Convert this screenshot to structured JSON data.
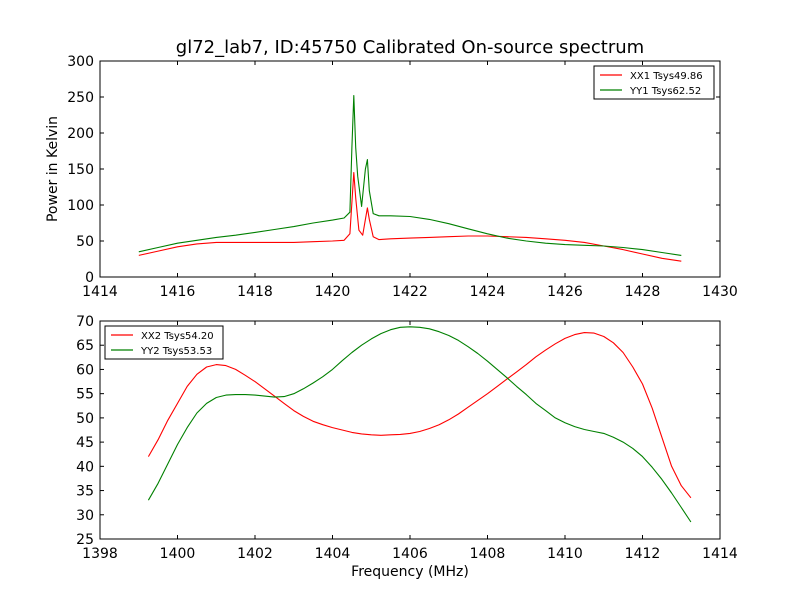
{
  "chart_data": [
    {
      "type": "line",
      "title": "gl72_lab7, ID:45750 Calibrated On-source spectrum",
      "xlabel": "",
      "ylabel": "Power in Kelvin",
      "xlim": [
        1414,
        1430
      ],
      "ylim": [
        0,
        300
      ],
      "xticks": [
        1414,
        1416,
        1418,
        1420,
        1422,
        1424,
        1426,
        1428,
        1430
      ],
      "yticks": [
        0,
        50,
        100,
        150,
        200,
        250,
        300
      ],
      "grid": false,
      "legend": "top-right",
      "series": [
        {
          "name": "XX1 Tsys49.86",
          "color": "#ff0000",
          "x": [
            1415.0,
            1415.5,
            1416.0,
            1416.5,
            1417.0,
            1417.5,
            1418.0,
            1418.5,
            1419.0,
            1419.5,
            1420.0,
            1420.3,
            1420.45,
            1420.55,
            1420.6,
            1420.68,
            1420.78,
            1420.85,
            1420.9,
            1420.95,
            1421.05,
            1421.2,
            1421.5,
            1422.0,
            1422.5,
            1423.0,
            1423.5,
            1424.0,
            1424.5,
            1425.0,
            1425.5,
            1426.0,
            1426.5,
            1427.0,
            1427.5,
            1428.0,
            1428.5,
            1429.0
          ],
          "y": [
            30,
            36,
            42,
            46,
            48,
            48,
            48,
            48,
            48,
            49,
            50,
            51,
            60,
            145,
            110,
            65,
            58,
            80,
            96,
            80,
            56,
            52,
            53,
            54,
            55,
            56,
            57,
            57,
            56,
            55,
            53,
            51,
            48,
            43,
            38,
            32,
            26,
            22
          ]
        },
        {
          "name": "YY1 Tsys62.52",
          "color": "#008000",
          "x": [
            1415.0,
            1415.5,
            1416.0,
            1416.5,
            1417.0,
            1417.5,
            1418.0,
            1418.5,
            1419.0,
            1419.5,
            1420.0,
            1420.3,
            1420.45,
            1420.5,
            1420.55,
            1420.6,
            1420.65,
            1420.75,
            1420.85,
            1420.9,
            1420.95,
            1421.05,
            1421.2,
            1421.5,
            1422.0,
            1422.5,
            1423.0,
            1423.5,
            1424.0,
            1424.5,
            1425.0,
            1425.5,
            1426.0,
            1426.5,
            1427.0,
            1427.5,
            1428.0,
            1428.5,
            1429.0
          ],
          "y": [
            35,
            41,
            47,
            51,
            55,
            58,
            62,
            66,
            70,
            75,
            79,
            82,
            90,
            180,
            252,
            180,
            140,
            98,
            150,
            163,
            120,
            88,
            85,
            85,
            84,
            80,
            74,
            67,
            60,
            54,
            50,
            47,
            45,
            44,
            43,
            41,
            38,
            34,
            30
          ]
        }
      ]
    },
    {
      "type": "line",
      "title": "",
      "xlabel": "Frequency (MHz)",
      "ylabel": "",
      "xlim": [
        1398,
        1414
      ],
      "ylim": [
        25,
        70
      ],
      "xticks": [
        1398,
        1400,
        1402,
        1404,
        1406,
        1408,
        1410,
        1412,
        1414
      ],
      "yticks": [
        25,
        30,
        35,
        40,
        45,
        50,
        55,
        60,
        65,
        70
      ],
      "grid": false,
      "legend": "top-left",
      "series": [
        {
          "name": "XX2 Tsys54.20",
          "color": "#ff0000",
          "x": [
            1399.25,
            1399.5,
            1399.75,
            1400.0,
            1400.25,
            1400.5,
            1400.75,
            1401.0,
            1401.25,
            1401.5,
            1401.75,
            1402.0,
            1402.25,
            1402.5,
            1402.75,
            1403.0,
            1403.25,
            1403.5,
            1403.75,
            1404.0,
            1404.25,
            1404.5,
            1404.75,
            1405.0,
            1405.25,
            1405.5,
            1405.75,
            1406.0,
            1406.25,
            1406.5,
            1406.75,
            1407.0,
            1407.25,
            1407.5,
            1407.75,
            1408.0,
            1408.25,
            1408.5,
            1408.75,
            1409.0,
            1409.25,
            1409.5,
            1409.75,
            1410.0,
            1410.25,
            1410.5,
            1410.75,
            1411.0,
            1411.25,
            1411.5,
            1411.75,
            1412.0,
            1412.25,
            1412.5,
            1412.75,
            1413.0,
            1413.25
          ],
          "y": [
            42,
            45.5,
            49.5,
            53,
            56.5,
            59,
            60.5,
            61,
            60.8,
            60,
            58.8,
            57.5,
            56,
            54.5,
            53,
            51.5,
            50.3,
            49.3,
            48.6,
            48,
            47.5,
            47,
            46.7,
            46.5,
            46.4,
            46.5,
            46.6,
            46.8,
            47.2,
            47.8,
            48.6,
            49.6,
            50.8,
            52.2,
            53.6,
            55,
            56.5,
            58,
            59.5,
            61,
            62.6,
            64,
            65.3,
            66.4,
            67.2,
            67.6,
            67.5,
            66.8,
            65.5,
            63.5,
            60.5,
            57,
            52,
            46,
            40,
            36,
            33.5
          ]
        },
        {
          "name": "YY2 Tsys53.53",
          "color": "#008000",
          "x": [
            1399.25,
            1399.5,
            1399.75,
            1400.0,
            1400.25,
            1400.5,
            1400.75,
            1401.0,
            1401.25,
            1401.5,
            1401.75,
            1402.0,
            1402.25,
            1402.5,
            1402.75,
            1403.0,
            1403.25,
            1403.5,
            1403.75,
            1404.0,
            1404.25,
            1404.5,
            1404.75,
            1405.0,
            1405.25,
            1405.5,
            1405.75,
            1406.0,
            1406.25,
            1406.5,
            1406.75,
            1407.0,
            1407.25,
            1407.5,
            1407.75,
            1408.0,
            1408.25,
            1408.5,
            1408.75,
            1409.0,
            1409.25,
            1409.5,
            1409.75,
            1410.0,
            1410.25,
            1410.5,
            1410.75,
            1411.0,
            1411.25,
            1411.5,
            1411.75,
            1412.0,
            1412.25,
            1412.5,
            1412.75,
            1413.0,
            1413.25
          ],
          "y": [
            33,
            36.5,
            40.5,
            44.5,
            48,
            51,
            53,
            54.2,
            54.7,
            54.8,
            54.8,
            54.7,
            54.5,
            54.3,
            54.4,
            55,
            56,
            57.2,
            58.5,
            60,
            61.8,
            63.5,
            65,
            66.3,
            67.4,
            68.2,
            68.7,
            68.8,
            68.7,
            68.4,
            67.8,
            67,
            66,
            64.7,
            63.3,
            61.7,
            60,
            58.3,
            56.5,
            54.8,
            53,
            51.5,
            50,
            49,
            48.2,
            47.6,
            47.2,
            46.8,
            46,
            45,
            43.7,
            42,
            39.8,
            37.3,
            34.5,
            31.5,
            28.5
          ]
        }
      ]
    }
  ]
}
